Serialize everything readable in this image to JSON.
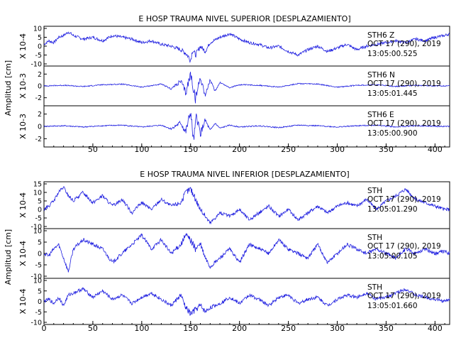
{
  "colors": {
    "trace": "#1f1fe0",
    "axis": "#000000",
    "background": "#ffffff"
  },
  "chart_data": [
    {
      "type": "line",
      "title": "E HOSP TRAUMA NIVEL SUPERIOR [DESPLAZAMIENTO]",
      "ylabel": "Amplitud [cm]",
      "xlim": [
        0,
        415
      ],
      "xticks": [
        "50",
        "100",
        "150",
        "200",
        "250",
        "300",
        "350",
        "400"
      ],
      "grid": false,
      "panels": [
        {
          "name": "panel-1",
          "scale_label": "X 10-4",
          "ylim": [
            -10,
            10
          ],
          "yticks": [
            "10",
            "5",
            "0",
            "-5",
            "-10"
          ],
          "station_label": "STH6 Z",
          "date_label": "OCT 17 (290), 2019",
          "time_label": "13:05:00.525",
          "series": [
            {
              "x": [
                0,
                5,
                10,
                15,
                20,
                25,
                30,
                40,
                50,
                60,
                70,
                80,
                90,
                100,
                110,
                120,
                130,
                140,
                145,
                148,
                150,
                152,
                155,
                160,
                165,
                170,
                180,
                190,
                200,
                210,
                220,
                230,
                240,
                250,
                260,
                270,
                280,
                290,
                300,
                310,
                320,
                330,
                340,
                350,
                360,
                370,
                380,
                390,
                400,
                410,
                415
              ],
              "y": [
                1,
                3,
                2,
                5,
                6,
                8,
                6,
                4,
                5,
                3,
                6,
                5,
                4,
                2,
                3,
                1,
                0,
                -2,
                -4,
                -6,
                -8,
                -2,
                -5,
                0,
                -3,
                2,
                5,
                7,
                4,
                2,
                1,
                -1,
                0,
                -3,
                -5,
                -2,
                0,
                -3,
                -1,
                1,
                -2,
                0,
                1,
                2,
                3,
                2,
                4,
                3,
                5,
                6,
                7
              ]
            }
          ]
        },
        {
          "name": "panel-2",
          "scale_label": "X 10-3",
          "ylim": [
            -3,
            3
          ],
          "yticks": [
            "2",
            "0",
            "-2"
          ],
          "station_label": "STH6 N",
          "date_label": "OCT 17 (290), 2019",
          "time_label": "13:05:01.445",
          "series": [
            {
              "x": [
                0,
                20,
                40,
                60,
                80,
                100,
                120,
                130,
                140,
                145,
                150,
                155,
                160,
                165,
                170,
                175,
                180,
                190,
                200,
                220,
                240,
                260,
                280,
                300,
                320,
                340,
                360,
                380,
                400,
                415
              ],
              "y": [
                0,
                0.1,
                -0.1,
                0.2,
                0.3,
                -0.2,
                0.3,
                -0.5,
                0.8,
                -1.2,
                2.0,
                -2.2,
                1.5,
                -1.6,
                1.0,
                -0.9,
                0.6,
                -0.3,
                0.2,
                0.1,
                -0.2,
                0.4,
                0.3,
                -0.2,
                0.1,
                0.2,
                -0.1,
                0.1,
                0,
                0
              ]
            }
          ]
        },
        {
          "name": "panel-3",
          "scale_label": "X 10-3",
          "ylim": [
            -3,
            3
          ],
          "yticks": [
            "2",
            "0",
            "-2"
          ],
          "station_label": "STH6 E",
          "date_label": "OCT 17 (290), 2019",
          "time_label": "13:05:00.900",
          "series": [
            {
              "x": [
                0,
                20,
                40,
                60,
                80,
                100,
                120,
                130,
                140,
                145,
                150,
                153,
                156,
                160,
                165,
                170,
                175,
                180,
                190,
                200,
                220,
                240,
                260,
                280,
                300,
                320,
                340,
                360,
                380,
                400,
                415
              ],
              "y": [
                0,
                0.1,
                -0.1,
                0.1,
                0.2,
                -0.1,
                0.2,
                -0.4,
                0.6,
                -1.0,
                2.4,
                -2.5,
                1.8,
                -1.2,
                1.0,
                -0.7,
                0.5,
                -0.3,
                0.2,
                -0.1,
                0.1,
                -0.2,
                0.2,
                0.1,
                -0.1,
                0.1,
                0.2,
                -0.1,
                0.1,
                0,
                0
              ]
            }
          ]
        }
      ]
    },
    {
      "type": "line",
      "title": "E HOSP TRAUMA NIVEL INFERIOR [DESPLAZAMIENTO]",
      "ylabel": "Amplitud [cm]",
      "xlim": [
        0,
        415
      ],
      "xticks": [
        "0",
        "50",
        "100",
        "150",
        "200",
        "250",
        "300",
        "350",
        "400"
      ],
      "grid": false,
      "panels": [
        {
          "name": "panel-4",
          "scale_label": "X 10-4",
          "ylim": [
            -10,
            15
          ],
          "yticks": [
            "15",
            "10",
            "5",
            "0",
            "-5",
            "-10"
          ],
          "station_label": "STH",
          "date_label": "OCT 17 (290), 2019",
          "time_label": "13:05:01.290",
          "series": [
            {
              "x": [
                0,
                5,
                10,
                15,
                20,
                25,
                30,
                40,
                50,
                60,
                70,
                80,
                90,
                100,
                110,
                120,
                130,
                140,
                145,
                150,
                155,
                160,
                165,
                170,
                180,
                190,
                200,
                210,
                220,
                230,
                240,
                250,
                260,
                270,
                280,
                290,
                300,
                310,
                320,
                330,
                340,
                350,
                360,
                370,
                380,
                390,
                400,
                410,
                415
              ],
              "y": [
                0,
                2,
                5,
                10,
                13,
                8,
                5,
                10,
                4,
                8,
                2,
                6,
                -2,
                4,
                0,
                6,
                2,
                4,
                10,
                12,
                6,
                0,
                -4,
                -8,
                -2,
                -4,
                0,
                -6,
                -2,
                2,
                -4,
                0,
                -6,
                -2,
                2,
                -2,
                2,
                4,
                2,
                6,
                0,
                5,
                8,
                12,
                6,
                4,
                2,
                0,
                0
              ]
            }
          ]
        },
        {
          "name": "panel-5",
          "scale_label": "X 10-4",
          "ylim": [
            -10,
            10
          ],
          "yticks": [
            "10",
            "5",
            "0",
            "-5",
            "-10"
          ],
          "station_label": "STH",
          "date_label": "OCT 17 (290), 2019",
          "time_label": "13:05:00.105",
          "series": [
            {
              "x": [
                0,
                5,
                10,
                15,
                20,
                25,
                30,
                40,
                50,
                60,
                70,
                80,
                90,
                100,
                110,
                120,
                130,
                140,
                145,
                150,
                155,
                160,
                165,
                170,
                180,
                190,
                200,
                210,
                220,
                230,
                240,
                250,
                260,
                270,
                280,
                290,
                300,
                310,
                320,
                330,
                340,
                350,
                360,
                370,
                380,
                390,
                400,
                410,
                415
              ],
              "y": [
                0,
                -1,
                2,
                4,
                -2,
                -8,
                2,
                6,
                4,
                2,
                -4,
                0,
                4,
                8,
                2,
                6,
                0,
                4,
                8,
                6,
                2,
                4,
                -2,
                -6,
                -2,
                2,
                -4,
                4,
                2,
                0,
                6,
                2,
                0,
                -2,
                4,
                -4,
                0,
                4,
                2,
                0,
                2,
                0,
                -2,
                2,
                0,
                2,
                0,
                1,
                0
              ]
            }
          ]
        },
        {
          "name": "panel-6",
          "scale_label": "X 10-4",
          "ylim": [
            -10,
            10
          ],
          "yticks": [
            "10",
            "5",
            "0",
            "-5",
            "-10"
          ],
          "station_label": "STH",
          "date_label": "OCT 17 (290), 2019",
          "time_label": "13:05:01.660",
          "series": [
            {
              "x": [
                0,
                5,
                10,
                15,
                20,
                25,
                30,
                40,
                50,
                60,
                70,
                80,
                90,
                100,
                110,
                120,
                130,
                140,
                145,
                150,
                155,
                160,
                165,
                170,
                180,
                190,
                200,
                210,
                220,
                230,
                240,
                250,
                260,
                270,
                280,
                290,
                300,
                310,
                320,
                330,
                340,
                350,
                360,
                370,
                380,
                390,
                400,
                410,
                415
              ],
              "y": [
                0,
                1,
                -1,
                2,
                -2,
                3,
                4,
                6,
                2,
                5,
                1,
                3,
                -1,
                2,
                4,
                1,
                -2,
                3,
                -3,
                -6,
                -4,
                -2,
                -5,
                -3,
                -1,
                2,
                -1,
                3,
                1,
                -2,
                2,
                3,
                -1,
                1,
                2,
                -2,
                1,
                3,
                2,
                4,
                1,
                2,
                4,
                6,
                3,
                2,
                1,
                0,
                1
              ]
            }
          ]
        }
      ]
    }
  ]
}
